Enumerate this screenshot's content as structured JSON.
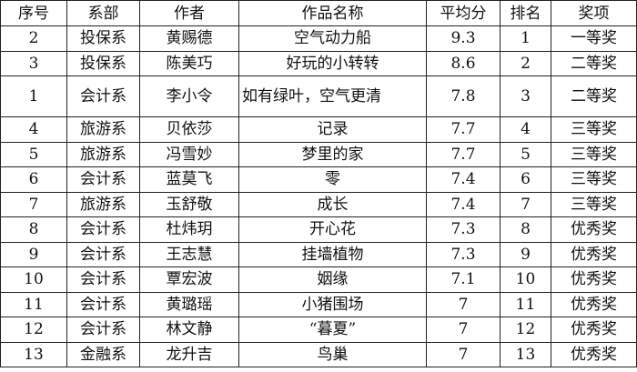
{
  "headers": [
    "序号",
    "系部",
    "作者",
    "作品名称",
    "平均分",
    "排名",
    "奖项"
  ],
  "rows": [
    [
      "2",
      "投保系",
      "黄赐德",
      "空气动力船",
      "9.3",
      "1",
      "一等奖"
    ],
    [
      "3",
      "投保系",
      "陈美巧",
      "好玩的小转转",
      "8.6",
      "2",
      "二等奖"
    ],
    [
      "1",
      "会计系",
      "李小令",
      "如有绿叶，空气更清",
      "7.8",
      "3",
      "二等奖"
    ],
    [
      "4",
      "旅游系",
      "贝依莎",
      "记录",
      "7.7",
      "4",
      "三等奖"
    ],
    [
      "5",
      "旅游系",
      "冯雪妙",
      "梦里的家",
      "7.7",
      "5",
      "三等奖"
    ],
    [
      "6",
      "会计系",
      "蓝莫飞",
      "零",
      "7.4",
      "6",
      "三等奖"
    ],
    [
      "7",
      "旅游系",
      "玉舒敬",
      "成长",
      "7.4",
      "7",
      "三等奖"
    ],
    [
      "8",
      "会计系",
      "杜炜玥",
      "开心花",
      "7.3",
      "8",
      "优秀奖"
    ],
    [
      "9",
      "会计系",
      "王志慧",
      "挂墙植物",
      "7.3",
      "9",
      "优秀奖"
    ],
    [
      "10",
      "会计系",
      "覃宏波",
      "姻缘",
      "7.1",
      "10",
      "优秀奖"
    ],
    [
      "11",
      "会计系",
      "黄璐瑶",
      "小猪围场",
      "7",
      "11",
      "优秀奖"
    ],
    [
      "12",
      "会计系",
      "林文静",
      "“暮夏”",
      "7",
      "12",
      "优秀奖"
    ],
    [
      "13",
      "金融系",
      "龙升吉",
      "鸟巢",
      "7",
      "13",
      "优秀奖"
    ]
  ]
}
